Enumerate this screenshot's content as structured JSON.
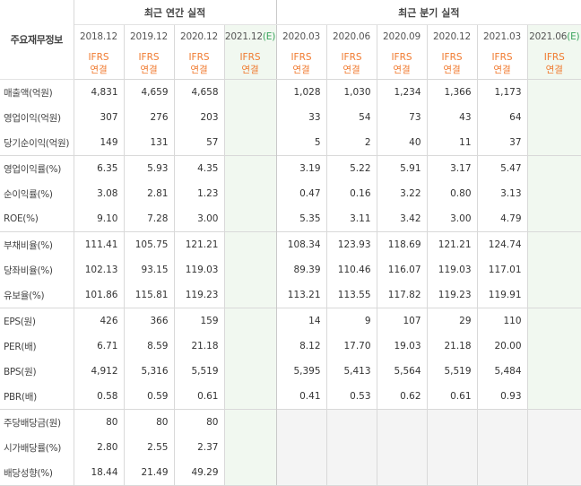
{
  "corner_label": "주요재무정보",
  "group_annual": "최근 연간 실적",
  "group_quarter": "최근 분기 실적",
  "est_tag": "(E)",
  "annual_periods": [
    "2018.12",
    "2019.12",
    "2020.12",
    "2021.12"
  ],
  "quarter_periods": [
    "2020.03",
    "2020.06",
    "2020.09",
    "2020.12",
    "2021.03",
    "2021.06"
  ],
  "ifrs_line1": "IFRS",
  "ifrs_line2": "연결",
  "rows": [
    {
      "label": "매출액(억원)",
      "annual": [
        "4,831",
        "4,659",
        "4,658",
        ""
      ],
      "quarter": [
        "1,028",
        "1,030",
        "1,234",
        "1,366",
        "1,173",
        ""
      ]
    },
    {
      "label": "영업이익(억원)",
      "annual": [
        "307",
        "276",
        "203",
        ""
      ],
      "quarter": [
        "33",
        "54",
        "73",
        "43",
        "64",
        ""
      ]
    },
    {
      "label": "당기순이익(억원)",
      "annual": [
        "149",
        "131",
        "57",
        ""
      ],
      "quarter": [
        "5",
        "2",
        "40",
        "11",
        "37",
        ""
      ]
    },
    {
      "label": "영업이익률(%)",
      "annual": [
        "6.35",
        "5.93",
        "4.35",
        ""
      ],
      "quarter": [
        "3.19",
        "5.22",
        "5.91",
        "3.17",
        "5.47",
        ""
      ]
    },
    {
      "label": "순이익률(%)",
      "annual": [
        "3.08",
        "2.81",
        "1.23",
        ""
      ],
      "quarter": [
        "0.47",
        "0.16",
        "3.22",
        "0.80",
        "3.13",
        ""
      ]
    },
    {
      "label": "ROE(%)",
      "annual": [
        "9.10",
        "7.28",
        "3.00",
        ""
      ],
      "quarter": [
        "5.35",
        "3.11",
        "3.42",
        "3.00",
        "4.79",
        ""
      ]
    },
    {
      "label": "부채비율(%)",
      "annual": [
        "111.41",
        "105.75",
        "121.21",
        ""
      ],
      "quarter": [
        "108.34",
        "123.93",
        "118.69",
        "121.21",
        "124.74",
        ""
      ]
    },
    {
      "label": "당좌비율(%)",
      "annual": [
        "102.13",
        "93.15",
        "119.03",
        ""
      ],
      "quarter": [
        "89.39",
        "110.46",
        "116.07",
        "119.03",
        "117.01",
        ""
      ]
    },
    {
      "label": "유보율(%)",
      "annual": [
        "101.86",
        "115.81",
        "119.23",
        ""
      ],
      "quarter": [
        "113.21",
        "113.55",
        "117.82",
        "119.23",
        "119.91",
        ""
      ]
    },
    {
      "label": "EPS(원)",
      "annual": [
        "426",
        "366",
        "159",
        ""
      ],
      "quarter": [
        "14",
        "9",
        "107",
        "29",
        "110",
        ""
      ]
    },
    {
      "label": "PER(배)",
      "annual": [
        "6.71",
        "8.59",
        "21.18",
        ""
      ],
      "quarter": [
        "8.12",
        "17.70",
        "19.03",
        "21.18",
        "20.00",
        ""
      ]
    },
    {
      "label": "BPS(원)",
      "annual": [
        "4,912",
        "5,316",
        "5,519",
        ""
      ],
      "quarter": [
        "5,395",
        "5,413",
        "5,564",
        "5,519",
        "5,484",
        ""
      ]
    },
    {
      "label": "PBR(배)",
      "annual": [
        "0.58",
        "0.59",
        "0.61",
        ""
      ],
      "quarter": [
        "0.41",
        "0.53",
        "0.62",
        "0.61",
        "0.93",
        ""
      ]
    },
    {
      "label": "주당배당금(원)",
      "annual": [
        "80",
        "80",
        "80",
        ""
      ],
      "quarter": [
        "",
        "",
        "",
        "",
        "",
        ""
      ]
    },
    {
      "label": "시가배당률(%)",
      "annual": [
        "2.80",
        "2.55",
        "2.37",
        ""
      ],
      "quarter": [
        "",
        "",
        "",
        "",
        "",
        ""
      ]
    },
    {
      "label": "배당성향(%)",
      "annual": [
        "18.44",
        "21.49",
        "49.29",
        ""
      ],
      "quarter": [
        "",
        "",
        "",
        "",
        "",
        ""
      ]
    }
  ]
}
